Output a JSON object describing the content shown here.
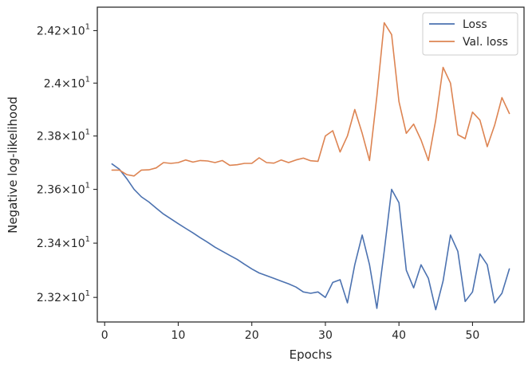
{
  "chart_data": {
    "type": "line",
    "xlabel": "Epochs",
    "ylabel": "Negative log-likelihood",
    "xlim": [
      -1,
      57
    ],
    "ylim": [
      23.11,
      24.29
    ],
    "y_scale": "log",
    "x_ticks": [
      {
        "value": 0,
        "label": "0"
      },
      {
        "value": 10,
        "label": "10"
      },
      {
        "value": 20,
        "label": "20"
      },
      {
        "value": 30,
        "label": "30"
      },
      {
        "value": 40,
        "label": "40"
      },
      {
        "value": 50,
        "label": "50"
      }
    ],
    "y_ticks": [
      {
        "value": 23.2,
        "mantissa": "2.32",
        "times": "×",
        "base": "10",
        "exp": "1"
      },
      {
        "value": 23.4,
        "mantissa": "2.34",
        "times": "×",
        "base": "10",
        "exp": "1"
      },
      {
        "value": 23.6,
        "mantissa": "2.36",
        "times": "×",
        "base": "10",
        "exp": "1"
      },
      {
        "value": 23.8,
        "mantissa": "2.38",
        "times": "×",
        "base": "10",
        "exp": "1"
      },
      {
        "value": 24.0,
        "mantissa": "2.4",
        "times": "×",
        "base": "10",
        "exp": "1"
      },
      {
        "value": 24.2,
        "mantissa": "2.42",
        "times": "×",
        "base": "10",
        "exp": "1"
      }
    ],
    "grid": false,
    "legend": "top-right",
    "x": [
      1,
      2,
      3,
      4,
      5,
      6,
      7,
      8,
      9,
      10,
      11,
      12,
      13,
      14,
      15,
      16,
      17,
      18,
      19,
      20,
      21,
      22,
      23,
      24,
      25,
      26,
      27,
      28,
      29,
      30,
      31,
      32,
      33,
      34,
      35,
      36,
      37,
      38,
      39,
      40,
      41,
      42,
      43,
      44,
      45,
      46,
      47,
      48,
      49,
      50,
      51,
      52,
      53,
      54,
      55
    ],
    "series": [
      {
        "name": "Loss",
        "color": "#4c72b0",
        "values": [
          23.695,
          23.675,
          23.64,
          23.6,
          23.572,
          23.553,
          23.53,
          23.508,
          23.49,
          23.472,
          23.455,
          23.438,
          23.42,
          23.403,
          23.385,
          23.37,
          23.355,
          23.34,
          23.322,
          23.305,
          23.29,
          23.28,
          23.27,
          23.26,
          23.25,
          23.238,
          23.22,
          23.215,
          23.22,
          23.2,
          23.255,
          23.265,
          23.18,
          23.32,
          23.43,
          23.32,
          23.16,
          23.37,
          23.6,
          23.55,
          23.3,
          23.235,
          23.32,
          23.27,
          23.155,
          23.26,
          23.43,
          23.37,
          23.185,
          23.22,
          23.36,
          23.32,
          23.18,
          23.215,
          23.305
        ]
      },
      {
        "name": "Val. loss",
        "color": "#dd8452",
        "values": [
          23.672,
          23.672,
          23.655,
          23.65,
          23.672,
          23.673,
          23.68,
          23.7,
          23.697,
          23.7,
          23.71,
          23.702,
          23.708,
          23.706,
          23.7,
          23.708,
          23.69,
          23.692,
          23.697,
          23.697,
          23.718,
          23.7,
          23.698,
          23.71,
          23.7,
          23.71,
          23.717,
          23.707,
          23.705,
          23.8,
          23.82,
          23.74,
          23.8,
          23.9,
          23.81,
          23.708,
          23.95,
          24.23,
          24.185,
          23.93,
          23.81,
          23.845,
          23.785,
          23.708,
          23.86,
          24.06,
          24.0,
          23.805,
          23.79,
          23.89,
          23.86,
          23.76,
          23.84,
          23.945,
          23.885
        ]
      }
    ]
  }
}
